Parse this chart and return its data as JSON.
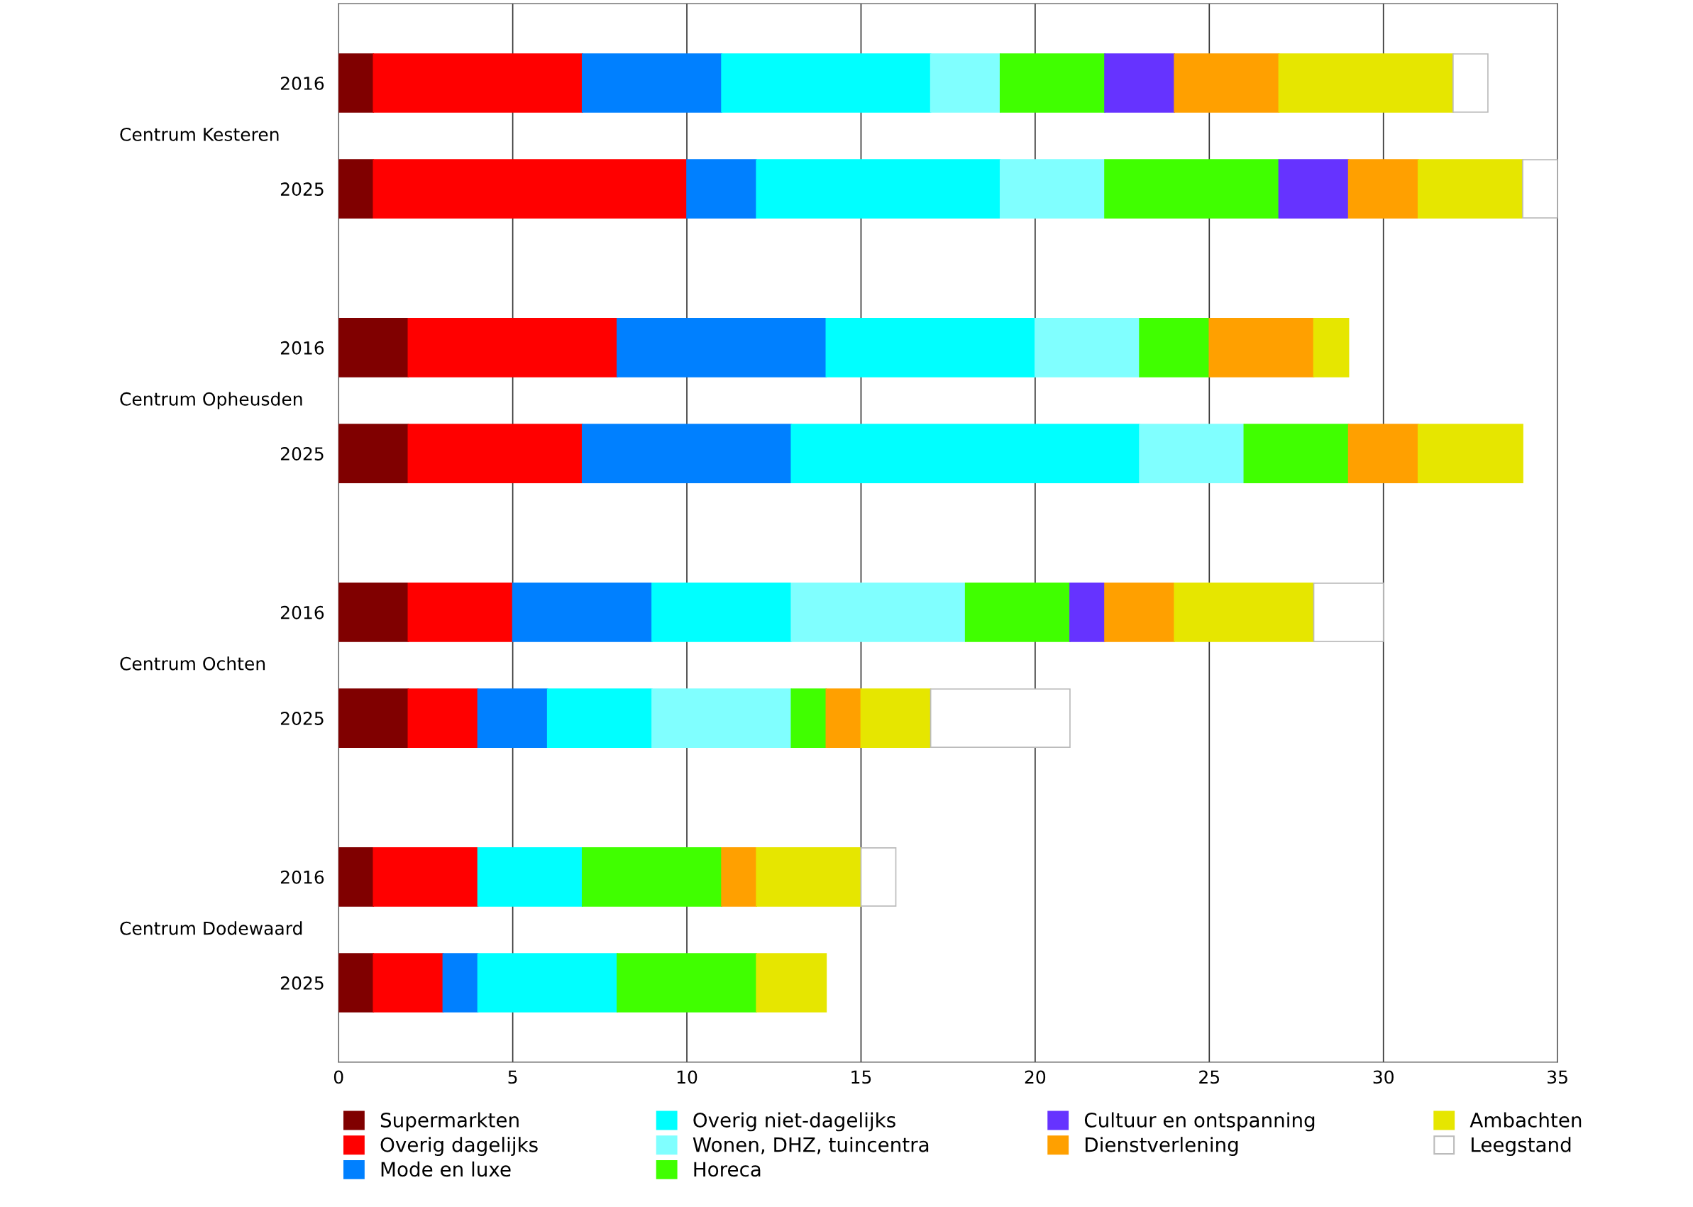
{
  "chart_data": {
    "type": "bar",
    "orientation": "horizontal",
    "stacked": true,
    "categories": [
      "2016",
      "2025",
      "2016",
      "2025",
      "2016",
      "2025",
      "2016",
      "2025"
    ],
    "series": [
      {
        "name": "Supermarkten",
        "color": "#800000",
        "values": [
          1,
          1,
          2,
          2,
          2,
          2,
          1,
          1
        ]
      },
      {
        "name": "Overig dagelijks",
        "color": "#ff0000",
        "values": [
          6,
          9,
          6,
          5,
          3,
          2,
          3,
          2
        ]
      },
      {
        "name": "Mode en luxe",
        "color": "#0080ff",
        "values": [
          4,
          2,
          6,
          6,
          4,
          2,
          0,
          1
        ]
      },
      {
        "name": "Overig niet-dagelijks",
        "color": "#00ffff",
        "values": [
          6,
          7,
          6,
          10,
          4,
          3,
          3,
          4
        ]
      },
      {
        "name": "Wonen, DHZ, tuincentra",
        "color": "#80ffff",
        "values": [
          2,
          3,
          3,
          3,
          5,
          4,
          0,
          0
        ]
      },
      {
        "name": "Horeca",
        "color": "#40ff00",
        "values": [
          3,
          5,
          2,
          3,
          3,
          1,
          4,
          4
        ]
      },
      {
        "name": "Cultuur en ontspanning",
        "color": "#6633ff",
        "values": [
          2,
          2,
          0,
          0,
          1,
          0,
          0,
          0
        ]
      },
      {
        "name": "Dienstverlening",
        "color": "#ffa000",
        "values": [
          3,
          2,
          3,
          2,
          2,
          1,
          1,
          0
        ]
      },
      {
        "name": "Ambachten",
        "color": "#e6e600",
        "values": [
          5,
          3,
          1,
          3,
          4,
          2,
          3,
          2
        ]
      },
      {
        "name": "Leegstand",
        "color": "#ffffff",
        "values": [
          1,
          1,
          0,
          0,
          2,
          4,
          1,
          0
        ]
      }
    ],
    "annotations": [
      "Centrum Kesteren",
      "Centrum Opheusden",
      "Centrum Ochten",
      "Centrum Dodewaard"
    ],
    "xlim": [
      0,
      35
    ],
    "xticks": [
      0,
      5,
      10,
      15,
      20,
      25,
      30,
      35
    ],
    "grid": "x",
    "legend": "bottom"
  }
}
